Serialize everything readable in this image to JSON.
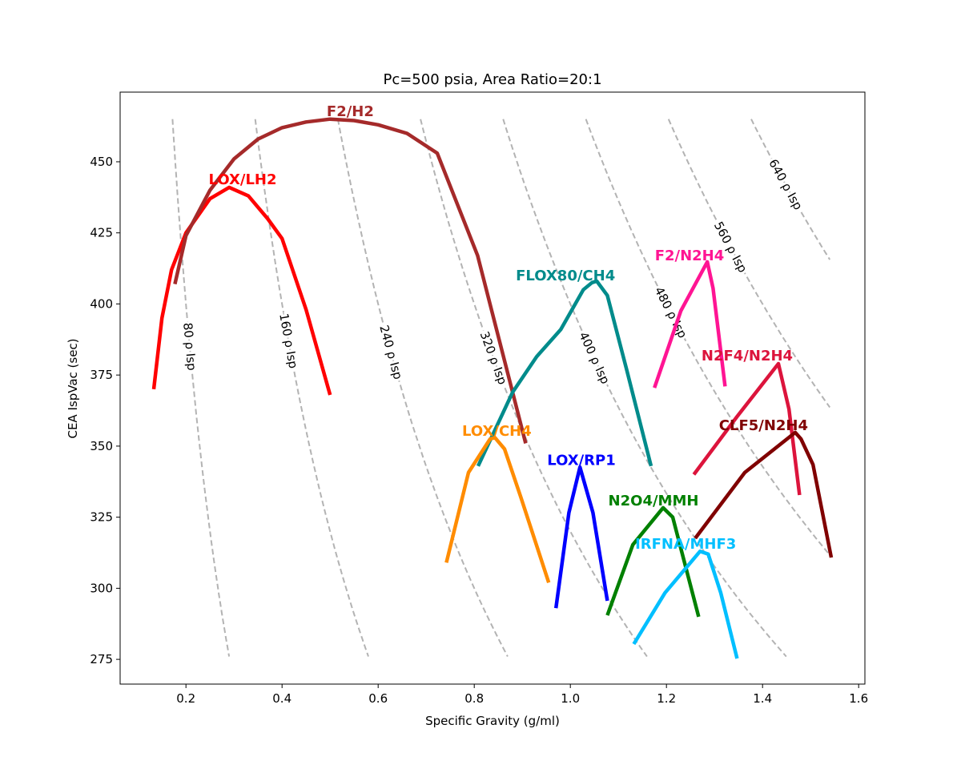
{
  "chart_data": {
    "type": "line",
    "title": "Pc=500 psia, Area Ratio=20:1",
    "xlabel": "Specific Gravity (g/ml)",
    "ylabel": "CEA IspVac (sec)",
    "xlim": [
      0.063,
      1.613
    ],
    "ylim": [
      266.3,
      474.5
    ],
    "xticks": [
      "0.2",
      "0.4",
      "0.6",
      "0.8",
      "1.0",
      "1.2",
      "1.4",
      "1.6"
    ],
    "yticks": [
      "275",
      "300",
      "325",
      "350",
      "375",
      "400",
      "425",
      "450"
    ],
    "grid": false,
    "series": [
      {
        "name": "LOX/LH2",
        "color": "#ff0000",
        "label_at": [
          0.318,
          443.8
        ],
        "x": [
          0.133,
          0.15,
          0.17,
          0.2,
          0.25,
          0.29,
          0.33,
          0.37,
          0.4,
          0.45,
          0.5
        ],
        "y": [
          370,
          395,
          412,
          425,
          437,
          441,
          438,
          430,
          423,
          398,
          368
        ]
      },
      {
        "name": "F2/H2",
        "color": "#a52a2a",
        "label_at": [
          0.542,
          467.7
        ],
        "x": [
          0.177,
          0.2,
          0.25,
          0.3,
          0.35,
          0.4,
          0.45,
          0.5,
          0.55,
          0.6,
          0.66,
          0.723,
          0.807,
          0.907
        ],
        "y": [
          407,
          424,
          440,
          451,
          458,
          462,
          464,
          465,
          464.5,
          463,
          460,
          453,
          417,
          351
        ]
      },
      {
        "name": "FLOX80/CH4",
        "color": "#008b8b",
        "label_at": [
          0.99,
          410
        ],
        "x": [
          0.808,
          0.88,
          0.93,
          0.98,
          1.027,
          1.045,
          1.055,
          1.077,
          1.117,
          1.168
        ],
        "y": [
          343,
          369,
          381.5,
          391,
          405,
          407.5,
          408,
          403,
          377,
          343
        ]
      },
      {
        "name": "LOX/CH4",
        "color": "#ff8c00",
        "label_at": [
          0.847,
          355.3
        ],
        "x": [
          0.742,
          0.788,
          0.833,
          0.843,
          0.863,
          0.897,
          0.955
        ],
        "y": [
          309,
          340.7,
          352.5,
          353,
          349,
          332,
          302
        ]
      },
      {
        "name": "LOX/RP1",
        "color": "#0000ff",
        "label_at": [
          1.023,
          345
        ],
        "x": [
          0.97,
          0.997,
          1.02,
          1.047,
          1.077
        ],
        "y": [
          293,
          326.6,
          342.6,
          326.6,
          295.6
        ]
      },
      {
        "name": "N2O4/MMH",
        "color": "#008000",
        "label_at": [
          1.173,
          330.8
        ],
        "x": [
          1.077,
          1.13,
          1.193,
          1.213,
          1.267
        ],
        "y": [
          290.5,
          315.3,
          328.3,
          325,
          290
        ]
      },
      {
        "name": "IRFNA/MHF3",
        "color": "#00bfff",
        "label_at": [
          1.24,
          315.6
        ],
        "x": [
          1.132,
          1.197,
          1.27,
          1.287,
          1.313,
          1.347
        ],
        "y": [
          280.4,
          298.4,
          313,
          312,
          298.4,
          275.3
        ]
      },
      {
        "name": "F2/N2H4",
        "color": "#ff1493",
        "label_at": [
          1.248,
          417
        ],
        "x": [
          1.175,
          1.23,
          1.285,
          1.297,
          1.322
        ],
        "y": [
          370.5,
          397.6,
          414.8,
          405.5,
          371
        ]
      },
      {
        "name": "N2F4/N2H4",
        "color": "#dc143c",
        "label_at": [
          1.368,
          381.8
        ],
        "x": [
          1.257,
          1.347,
          1.433,
          1.455,
          1.477
        ],
        "y": [
          340,
          360.4,
          379,
          363,
          332.8
        ]
      },
      {
        "name": "CLF5/N2H4",
        "color": "#800000",
        "label_at": [
          1.402,
          357.3
        ],
        "x": [
          1.26,
          1.363,
          1.468,
          1.48,
          1.505,
          1.543
        ],
        "y": [
          317.6,
          340.7,
          354.8,
          352.5,
          343.5,
          310.8
        ]
      }
    ],
    "iso_lines": [
      {
        "value": 80,
        "label": "80 ρ Isp",
        "label_y": 385
      },
      {
        "value": 160,
        "label": "160 ρ Isp",
        "label_y": 387
      },
      {
        "value": 240,
        "label": "240 ρ Isp",
        "label_y": 383
      },
      {
        "value": 320,
        "label": "320 ρ Isp",
        "label_y": 381
      },
      {
        "value": 400,
        "label": "400 ρ Isp",
        "label_y": 381
      },
      {
        "value": 480,
        "label": "480 ρ Isp",
        "label_y": 397
      },
      {
        "value": 560,
        "label": "560 ρ Isp",
        "label_y": 420
      },
      {
        "value": 640,
        "label": "640 ρ Isp",
        "label_y": 442
      }
    ],
    "iso_range": {
      "y_max": 465,
      "y_min": 276,
      "x_max": 1.54
    }
  }
}
